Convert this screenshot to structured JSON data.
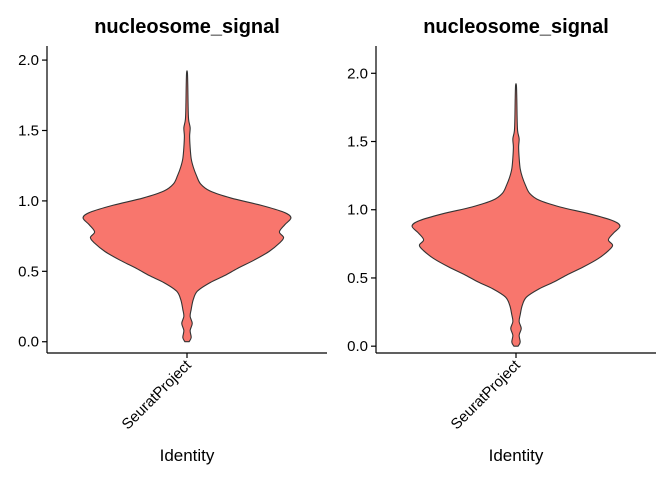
{
  "chart_data": [
    {
      "type": "violin",
      "title": "nucleosome_signal",
      "xlabel": "Identity",
      "ylabel": "",
      "categories": [
        "SeuratProject"
      ],
      "ylim": [
        -0.08,
        2.1
      ],
      "yticks": [
        0.0,
        0.5,
        1.0,
        1.5,
        2.0
      ],
      "ytick_labels": [
        "0.0",
        "0.5",
        "1.0",
        "1.5",
        "2.0"
      ],
      "fill_color": "#F8766D",
      "line_color": "#333333",
      "density_profile": [
        {
          "y": 0.0,
          "w": 0.02
        },
        {
          "y": 0.03,
          "w": 0.04
        },
        {
          "y": 0.08,
          "w": 0.03
        },
        {
          "y": 0.13,
          "w": 0.05
        },
        {
          "y": 0.18,
          "w": 0.03
        },
        {
          "y": 0.23,
          "w": 0.04
        },
        {
          "y": 0.3,
          "w": 0.06
        },
        {
          "y": 0.36,
          "w": 0.1
        },
        {
          "y": 0.42,
          "w": 0.22
        },
        {
          "y": 0.47,
          "w": 0.36
        },
        {
          "y": 0.52,
          "w": 0.48
        },
        {
          "y": 0.58,
          "w": 0.64
        },
        {
          "y": 0.64,
          "w": 0.78
        },
        {
          "y": 0.7,
          "w": 0.88
        },
        {
          "y": 0.74,
          "w": 0.92
        },
        {
          "y": 0.78,
          "w": 0.88
        },
        {
          "y": 0.83,
          "w": 0.93
        },
        {
          "y": 0.88,
          "w": 0.99
        },
        {
          "y": 0.92,
          "w": 0.92
        },
        {
          "y": 0.97,
          "w": 0.7
        },
        {
          "y": 1.02,
          "w": 0.42
        },
        {
          "y": 1.07,
          "w": 0.22
        },
        {
          "y": 1.12,
          "w": 0.13
        },
        {
          "y": 1.18,
          "w": 0.09
        },
        {
          "y": 1.24,
          "w": 0.06
        },
        {
          "y": 1.3,
          "w": 0.04
        },
        {
          "y": 1.38,
          "w": 0.03
        },
        {
          "y": 1.46,
          "w": 0.025
        },
        {
          "y": 1.52,
          "w": 0.03
        },
        {
          "y": 1.58,
          "w": 0.015
        },
        {
          "y": 1.7,
          "w": 0.01
        },
        {
          "y": 1.8,
          "w": 0.008
        },
        {
          "y": 1.91,
          "w": 0.004
        }
      ]
    },
    {
      "type": "violin",
      "title": "nucleosome_signal",
      "xlabel": "Identity",
      "ylabel": "",
      "categories": [
        "SeuratProject"
      ],
      "ylim": [
        -0.05,
        2.2
      ],
      "yticks": [
        0.0,
        0.5,
        1.0,
        1.5,
        2.0
      ],
      "ytick_labels": [
        "0.0",
        "0.5",
        "1.0",
        "1.5",
        "2.0"
      ],
      "fill_color": "#F8766D",
      "line_color": "#333333",
      "density_profile": [
        {
          "y": 0.0,
          "w": 0.02
        },
        {
          "y": 0.03,
          "w": 0.04
        },
        {
          "y": 0.08,
          "w": 0.03
        },
        {
          "y": 0.13,
          "w": 0.05
        },
        {
          "y": 0.18,
          "w": 0.03
        },
        {
          "y": 0.23,
          "w": 0.04
        },
        {
          "y": 0.3,
          "w": 0.06
        },
        {
          "y": 0.36,
          "w": 0.1
        },
        {
          "y": 0.42,
          "w": 0.22
        },
        {
          "y": 0.47,
          "w": 0.36
        },
        {
          "y": 0.52,
          "w": 0.48
        },
        {
          "y": 0.58,
          "w": 0.64
        },
        {
          "y": 0.64,
          "w": 0.78
        },
        {
          "y": 0.7,
          "w": 0.88
        },
        {
          "y": 0.74,
          "w": 0.92
        },
        {
          "y": 0.78,
          "w": 0.88
        },
        {
          "y": 0.83,
          "w": 0.93
        },
        {
          "y": 0.88,
          "w": 0.99
        },
        {
          "y": 0.92,
          "w": 0.92
        },
        {
          "y": 0.97,
          "w": 0.7
        },
        {
          "y": 1.02,
          "w": 0.42
        },
        {
          "y": 1.07,
          "w": 0.22
        },
        {
          "y": 1.12,
          "w": 0.13
        },
        {
          "y": 1.18,
          "w": 0.09
        },
        {
          "y": 1.24,
          "w": 0.06
        },
        {
          "y": 1.3,
          "w": 0.04
        },
        {
          "y": 1.38,
          "w": 0.03
        },
        {
          "y": 1.46,
          "w": 0.025
        },
        {
          "y": 1.52,
          "w": 0.03
        },
        {
          "y": 1.58,
          "w": 0.015
        },
        {
          "y": 1.7,
          "w": 0.01
        },
        {
          "y": 1.8,
          "w": 0.008
        },
        {
          "y": 1.91,
          "w": 0.004
        }
      ]
    }
  ]
}
